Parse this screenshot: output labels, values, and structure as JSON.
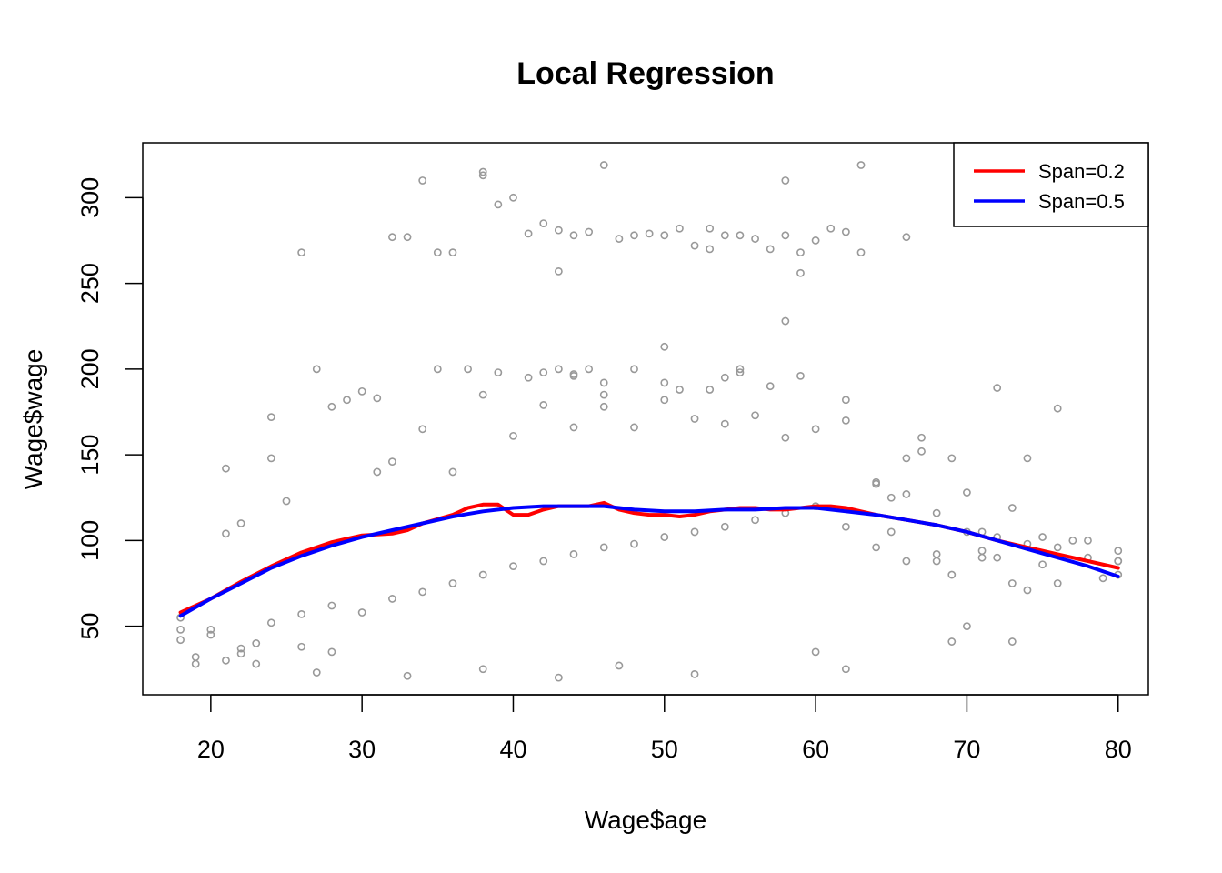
{
  "colors": {
    "points": "#999999",
    "span02": "#ff0000",
    "span05": "#0000ff",
    "frame": "#000000"
  },
  "chart_data": {
    "type": "scatter",
    "title": "Local Regression",
    "xlabel": "Wage$age",
    "ylabel": "Wage$wage",
    "xlim": [
      15.5,
      82
    ],
    "ylim": [
      10,
      332
    ],
    "xticks": [
      20,
      30,
      40,
      50,
      60,
      70,
      80
    ],
    "yticks": [
      50,
      100,
      150,
      200,
      250,
      300
    ],
    "grid": false,
    "legend_position": "top-right",
    "legend": [
      {
        "label": "Span=0.2",
        "color": "#ff0000"
      },
      {
        "label": "Span=0.5",
        "color": "#0000ff"
      }
    ],
    "series": [
      {
        "name": "Span=0.2",
        "kind": "line",
        "x": [
          18,
          20,
          22,
          24,
          26,
          28,
          30,
          32,
          33,
          34,
          36,
          37,
          38,
          39,
          40,
          41,
          42,
          43,
          44,
          45,
          46,
          47,
          48,
          49,
          50,
          51,
          52,
          53,
          54,
          55,
          56,
          57,
          58,
          59,
          60,
          61,
          62,
          63,
          64,
          66,
          68,
          70,
          72,
          74,
          76,
          78,
          80
        ],
        "y": [
          58,
          66,
          76,
          85,
          93,
          99,
          103,
          104,
          106,
          110,
          115,
          119,
          121,
          121,
          115,
          115,
          118,
          120,
          120,
          120,
          122,
          118,
          116,
          115,
          115,
          114,
          115,
          117,
          118,
          119,
          119,
          118,
          118,
          119,
          120,
          120,
          119,
          117,
          115,
          112,
          109,
          105,
          100,
          96,
          92,
          88,
          84
        ]
      },
      {
        "name": "Span=0.5",
        "kind": "line",
        "x": [
          18,
          20,
          22,
          24,
          26,
          28,
          30,
          32,
          34,
          36,
          38,
          40,
          42,
          44,
          46,
          48,
          50,
          52,
          54,
          56,
          58,
          60,
          62,
          64,
          66,
          68,
          70,
          72,
          74,
          76,
          78,
          80
        ],
        "y": [
          56,
          66,
          75,
          84,
          91,
          97,
          102,
          106,
          110,
          114,
          117,
          119,
          120,
          120,
          120,
          118,
          117,
          117,
          118,
          118,
          119,
          119,
          117,
          115,
          112,
          109,
          105,
          100,
          95,
          90,
          85,
          79
        ]
      },
      {
        "name": "",
        "kind": "points",
        "x": [
          34,
          38,
          38,
          46,
          63,
          39,
          40,
          42,
          43,
          44,
          45,
          47,
          48,
          49,
          50,
          51,
          52,
          53,
          54,
          55,
          56,
          57,
          58,
          59,
          60,
          61,
          62,
          63,
          66,
          58,
          59,
          50,
          26,
          35,
          36,
          32,
          33,
          43,
          41,
          53,
          58,
          64,
          65,
          67,
          67,
          69,
          70,
          72,
          74,
          76,
          77,
          80,
          80,
          80,
          75,
          73,
          71,
          69,
          68,
          66,
          65,
          71,
          73,
          74,
          76,
          78,
          79,
          69,
          70,
          72,
          73,
          18,
          18,
          18,
          19,
          19,
          20,
          20,
          21,
          21,
          22,
          22,
          23,
          23,
          24,
          24,
          26,
          27,
          28,
          33,
          38,
          43,
          47,
          52,
          60,
          62,
          43,
          44,
          45,
          46,
          48,
          51,
          55,
          35,
          37,
          39,
          41,
          42,
          44,
          46,
          50,
          53,
          54,
          55,
          57,
          59,
          62,
          64,
          66,
          68,
          21,
          24,
          27,
          29,
          30,
          31,
          22,
          25,
          28,
          31,
          32,
          34,
          36,
          38,
          40,
          42,
          44,
          46,
          48,
          50,
          52,
          54,
          56,
          58,
          60,
          62,
          26,
          28,
          30,
          32,
          34,
          36,
          38,
          40,
          42,
          44,
          46,
          48,
          50,
          52,
          54,
          56,
          58,
          60,
          62,
          64,
          66,
          68,
          70,
          72,
          74,
          76,
          78,
          80,
          71,
          75
        ],
        "y": [
          310,
          313,
          315,
          319,
          319,
          296,
          300,
          285,
          281,
          278,
          280,
          276,
          278,
          279,
          278,
          282,
          272,
          282,
          278,
          278,
          276,
          270,
          278,
          268,
          275,
          282,
          280,
          268,
          277,
          310,
          256,
          213,
          268,
          268,
          268,
          277,
          277,
          257,
          279,
          270,
          228,
          133,
          125,
          160,
          152,
          148,
          128,
          189,
          148,
          177,
          100,
          94,
          88,
          80,
          86,
          119,
          105,
          80,
          88,
          127,
          105,
          90,
          75,
          71,
          75,
          100,
          78,
          41,
          50,
          90,
          41,
          42,
          48,
          55,
          28,
          32,
          45,
          48,
          30,
          142,
          34,
          37,
          40,
          28,
          52,
          172,
          38,
          23,
          35,
          21,
          25,
          20,
          27,
          22,
          35,
          25,
          200,
          197,
          200,
          192,
          200,
          188,
          198,
          200,
          200,
          198,
          195,
          198,
          196,
          185,
          192,
          188,
          195,
          200,
          190,
          196,
          182,
          134,
          148,
          116,
          104,
          148,
          200,
          182,
          187,
          183,
          110,
          123,
          178,
          140,
          146,
          165,
          140,
          185,
          161,
          179,
          166,
          178,
          166,
          182,
          171,
          168,
          173,
          160,
          165,
          170,
          57,
          62,
          58,
          66,
          70,
          75,
          80,
          85,
          88,
          92,
          96,
          98,
          102,
          105,
          108,
          112,
          116,
          120,
          108,
          96,
          88,
          92,
          105,
          102,
          98,
          96,
          90,
          88,
          94,
          102
        ]
      }
    ]
  }
}
